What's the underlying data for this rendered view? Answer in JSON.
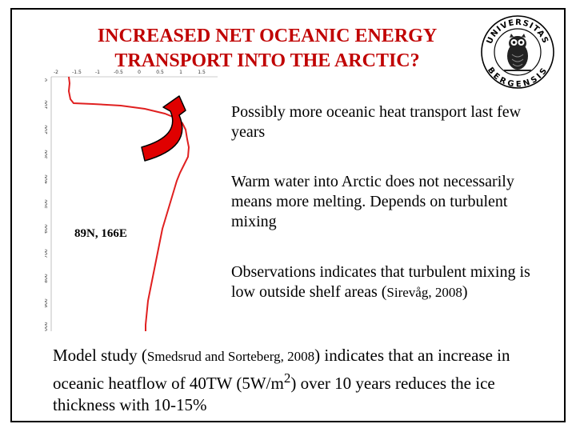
{
  "title": {
    "line1": "INCREASED NET OCEANIC ENERGY",
    "line2": "TRANSPORT INTO THE ARCTIC?"
  },
  "logo": {
    "ring_top": "UNIVERSITAS",
    "ring_bottom": "BERGENSIS",
    "icon": "owl-seal-icon"
  },
  "plot": {
    "station_label": "89N, 166E",
    "x_ticks": [
      "-2",
      "-1.5",
      "-1",
      "-0.5",
      "0",
      "0.5",
      "1",
      "1.5"
    ],
    "y_ticks": [
      "0",
      "100",
      "200",
      "300",
      "400",
      "500",
      "600",
      "700",
      "800",
      "900",
      "1000"
    ],
    "line_color": "#e02020",
    "arrow_color": "#e00000"
  },
  "points": {
    "p1": "Possibly more oceanic heat transport last few years",
    "p2": "Warm water into Arctic does not necessarily means more melting. Depends on turbulent mixing",
    "p3_main": "Observations indicates that turbulent mixing is low outside shelf areas",
    "p3_open": "(",
    "p3_ref": "Sirevåg, 2008",
    "p3_close": ")"
  },
  "bottom": {
    "a": "Model study (",
    "ref": "Smedsrud and  Sorteberg, 2008",
    "b": ") indicates that an increase in oceanic heatflow of 40TW (5W/m",
    "sup": "2",
    "c": ") over 10 years reduces the ice thickness with 10-15%"
  }
}
